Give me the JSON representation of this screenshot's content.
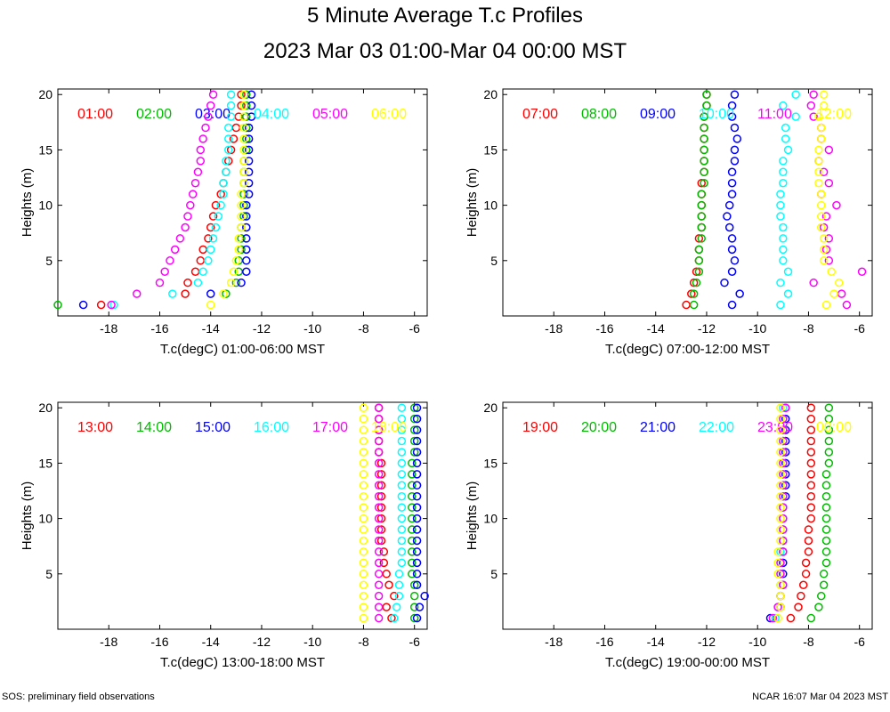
{
  "title": "5 Minute Average T.c Profiles",
  "subtitle": "2023 Mar 03 01:00-Mar 04 00:00 MST",
  "footer_left": "SOS: preliminary field observations",
  "footer_right": "NCAR 16:07 Mar 04 2023 MST",
  "hour_colors": [
    "#ff0000",
    "#00bb00",
    "#0000ff",
    "#00ffff",
    "#ff00ff",
    "#ffff00"
  ],
  "chart_data": [
    {
      "type": "scatter",
      "xlabel": "T.c(degC) 01:00-06:00 MST",
      "ylabel": "Heights (m)",
      "xlim": [
        -20,
        -5.5
      ],
      "ylim": [
        0,
        20.5
      ],
      "xticks": [
        -18,
        -16,
        -14,
        -12,
        -10,
        -8,
        -6
      ],
      "yticks": [
        5,
        10,
        15,
        20
      ],
      "heights": [
        1,
        2,
        3,
        4,
        5,
        6,
        7,
        8,
        9,
        10,
        11,
        12,
        13,
        14,
        15,
        16,
        17,
        18,
        19,
        20
      ],
      "series": [
        {
          "name": "01:00",
          "values": [
            -18.3,
            -15.0,
            -14.9,
            -14.6,
            -14.4,
            -14.3,
            -14.1,
            -14.0,
            -13.9,
            -13.8,
            -13.6,
            -13.5,
            -13.4,
            -13.3,
            -13.2,
            -13.1,
            -13.0,
            -12.9,
            -12.8,
            -12.8
          ]
        },
        {
          "name": "02:00",
          "values": [
            -20.0,
            -13.4,
            -13.0,
            -12.9,
            -12.9,
            -12.8,
            -12.8,
            -12.8,
            -12.7,
            -12.7,
            -12.7,
            -12.7,
            -12.7,
            -12.7,
            -12.6,
            -12.6,
            -12.6,
            -12.6,
            -12.6,
            -12.6
          ]
        },
        {
          "name": "03:00",
          "values": [
            -19.0,
            -14.0,
            -12.8,
            -12.6,
            -12.6,
            -12.6,
            -12.6,
            -12.6,
            -12.6,
            -12.6,
            -12.5,
            -12.5,
            -12.5,
            -12.5,
            -12.5,
            -12.5,
            -12.5,
            -12.4,
            -12.4,
            -12.4
          ]
        },
        {
          "name": "04:00",
          "values": [
            -17.8,
            -15.5,
            -14.5,
            -14.3,
            -14.1,
            -14.0,
            -13.9,
            -13.8,
            -13.7,
            -13.6,
            -13.5,
            -13.5,
            -13.4,
            -13.4,
            -13.3,
            -13.3,
            -13.3,
            -13.2,
            -13.2,
            -13.2
          ]
        },
        {
          "name": "05:00",
          "values": [
            -17.9,
            -16.9,
            -16.0,
            -15.8,
            -15.6,
            -15.4,
            -15.2,
            -15.0,
            -14.9,
            -14.8,
            -14.7,
            -14.6,
            -14.5,
            -14.4,
            -14.4,
            -14.3,
            -14.2,
            -14.1,
            -14.0,
            -13.9
          ]
        },
        {
          "name": "06:00",
          "values": [
            -14.0,
            -13.5,
            -13.2,
            -13.1,
            -13.0,
            -12.9,
            -12.9,
            -12.8,
            -12.8,
            -12.8,
            -12.8,
            -12.7,
            -12.7,
            -12.7,
            -12.7,
            -12.7,
            -12.7,
            -12.7,
            -12.7,
            -12.7
          ]
        }
      ]
    },
    {
      "type": "scatter",
      "xlabel": "T.c(degC) 07:00-12:00 MST",
      "ylabel": "Heights (m)",
      "xlim": [
        -20,
        -5.5
      ],
      "ylim": [
        0,
        20.5
      ],
      "xticks": [
        -18,
        -16,
        -14,
        -12,
        -10,
        -8,
        -6
      ],
      "yticks": [
        5,
        10,
        15,
        20
      ],
      "heights": [
        1,
        2,
        3,
        4,
        5,
        6,
        7,
        8,
        9,
        10,
        11,
        12,
        13,
        14,
        15,
        16,
        17,
        18,
        19,
        20
      ],
      "series": [
        {
          "name": "07:00",
          "values": [
            -12.8,
            -12.6,
            -12.5,
            -12.4,
            -12.3,
            -12.3,
            -12.3,
            -12.2,
            -12.2,
            -12.2,
            -12.2,
            -12.2,
            -12.1,
            -12.1,
            -12.1,
            -12.1,
            -12.1,
            -12.1,
            -12.0,
            -12.0
          ]
        },
        {
          "name": "08:00",
          "values": [
            -12.5,
            -12.5,
            -12.4,
            -12.3,
            -12.3,
            -12.3,
            -12.2,
            -12.2,
            -12.2,
            -12.2,
            -12.2,
            -12.1,
            -12.1,
            -12.1,
            -12.1,
            -12.1,
            -12.1,
            -12.1,
            -12.0,
            -12.0
          ]
        },
        {
          "name": "09:00",
          "values": [
            -11.0,
            -10.7,
            -11.3,
            -11.0,
            -10.9,
            -11.0,
            -11.0,
            -11.1,
            -11.2,
            -11.1,
            -11.0,
            -11.0,
            -11.0,
            -10.9,
            -10.9,
            -10.8,
            -10.9,
            -11.0,
            -11.0,
            -10.9
          ]
        },
        {
          "name": "10:00",
          "values": [
            -9.1,
            -8.8,
            -9.1,
            -8.8,
            -9.0,
            -9.0,
            -9.0,
            -9.0,
            -9.1,
            -9.1,
            -9.1,
            -9.0,
            -9.0,
            -9.0,
            -8.8,
            -8.9,
            -8.9,
            -8.5,
            -9.0,
            -8.5
          ]
        },
        {
          "name": "11:00",
          "values": [
            -6.5,
            -6.7,
            -7.8,
            -5.9,
            -7.2,
            -7.3,
            -7.2,
            -7.4,
            -7.3,
            -6.9,
            -7.5,
            -7.2,
            -7.4,
            -7.6,
            -7.2,
            -7.5,
            -7.5,
            -7.8,
            -7.9,
            -7.8
          ]
        },
        {
          "name": "12:00",
          "values": [
            -7.3,
            -7.0,
            -6.8,
            -7.1,
            -7.4,
            -7.4,
            -7.4,
            -7.5,
            -7.5,
            -7.5,
            -7.5,
            -7.6,
            -7.6,
            -7.6,
            -7.6,
            -7.5,
            -7.5,
            -7.6,
            -7.4,
            -7.4
          ]
        }
      ]
    },
    {
      "type": "scatter",
      "xlabel": "T.c(degC) 13:00-18:00 MST",
      "ylabel": "Heights (m)",
      "xlim": [
        -20,
        -5.5
      ],
      "ylim": [
        0,
        20.5
      ],
      "xticks": [
        -18,
        -16,
        -14,
        -12,
        -10,
        -8,
        -6
      ],
      "yticks": [
        5,
        10,
        15,
        20
      ],
      "heights": [
        1,
        2,
        3,
        4,
        5,
        6,
        7,
        8,
        9,
        10,
        11,
        12,
        13,
        14,
        15,
        16,
        17,
        18,
        19,
        20
      ],
      "series": [
        {
          "name": "13:00",
          "values": [
            -6.9,
            -7.1,
            -6.8,
            -7.0,
            -7.1,
            -7.2,
            -7.2,
            -7.3,
            -7.3,
            -7.3,
            -7.3,
            -7.3,
            -7.3,
            -7.3,
            -7.3,
            -7.4,
            -7.4,
            -7.4,
            -7.4,
            -7.4
          ]
        },
        {
          "name": "14:00",
          "values": [
            -6.0,
            -6.0,
            -6.0,
            -6.0,
            -6.1,
            -6.1,
            -6.1,
            -6.1,
            -6.1,
            -6.1,
            -6.1,
            -6.1,
            -6.1,
            -6.1,
            -6.1,
            -6.0,
            -6.0,
            -6.0,
            -6.0,
            -6.0
          ]
        },
        {
          "name": "15:00",
          "values": [
            -5.9,
            -5.8,
            -5.6,
            -5.9,
            -5.9,
            -5.9,
            -5.9,
            -5.9,
            -5.9,
            -5.9,
            -5.9,
            -5.9,
            -5.9,
            -5.9,
            -5.9,
            -5.9,
            -5.9,
            -5.9,
            -5.9,
            -5.9
          ]
        },
        {
          "name": "16:00",
          "values": [
            -6.8,
            -6.7,
            -6.6,
            -6.6,
            -6.6,
            -6.5,
            -6.5,
            -6.5,
            -6.5,
            -6.5,
            -6.5,
            -6.5,
            -6.5,
            -6.5,
            -6.5,
            -6.5,
            -6.5,
            -6.5,
            -6.5,
            -6.5
          ]
        },
        {
          "name": "17:00",
          "values": [
            -7.4,
            -7.4,
            -7.4,
            -7.4,
            -7.4,
            -7.4,
            -7.4,
            -7.4,
            -7.4,
            -7.4,
            -7.4,
            -7.4,
            -7.4,
            -7.4,
            -7.4,
            -7.4,
            -7.4,
            -7.4,
            -7.4,
            -7.4
          ]
        },
        {
          "name": "18:00",
          "values": [
            -8.0,
            -8.0,
            -8.0,
            -8.0,
            -8.0,
            -8.0,
            -8.0,
            -8.0,
            -8.0,
            -8.0,
            -8.0,
            -8.0,
            -8.0,
            -8.0,
            -8.0,
            -8.0,
            -8.0,
            -8.0,
            -8.0,
            -8.0
          ]
        }
      ]
    },
    {
      "type": "scatter",
      "xlabel": "T.c(degC) 19:00-00:00 MST",
      "ylabel": "Heights (m)",
      "xlim": [
        -20,
        -5.5
      ],
      "ylim": [
        0,
        20.5
      ],
      "xticks": [
        -18,
        -16,
        -14,
        -12,
        -10,
        -8,
        -6
      ],
      "yticks": [
        5,
        10,
        15,
        20
      ],
      "heights": [
        1,
        2,
        3,
        4,
        5,
        6,
        7,
        8,
        9,
        10,
        11,
        12,
        13,
        14,
        15,
        16,
        17,
        18,
        19,
        20
      ],
      "series": [
        {
          "name": "19:00",
          "values": [
            -8.7,
            -8.4,
            -8.3,
            -8.2,
            -8.1,
            -8.1,
            -8.0,
            -8.0,
            -8.0,
            -7.9,
            -7.9,
            -7.9,
            -7.9,
            -7.9,
            -7.9,
            -7.9,
            -7.9,
            -7.9,
            -7.9,
            -7.9
          ]
        },
        {
          "name": "20:00",
          "values": [
            -7.9,
            -7.6,
            -7.5,
            -7.4,
            -7.4,
            -7.3,
            -7.3,
            -7.3,
            -7.3,
            -7.3,
            -7.3,
            -7.3,
            -7.3,
            -7.3,
            -7.2,
            -7.2,
            -7.2,
            -7.2,
            -7.2,
            -7.2
          ]
        },
        {
          "name": "21:00",
          "values": [
            -9.5,
            -9.1,
            -9.1,
            -9.0,
            -9.0,
            -9.0,
            -9.0,
            -9.0,
            -9.0,
            -9.0,
            -9.0,
            -8.9,
            -8.9,
            -8.9,
            -8.9,
            -8.9,
            -8.9,
            -8.9,
            -8.9,
            -8.9
          ]
        },
        {
          "name": "22:00",
          "values": [
            -9.3,
            -9.2,
            -9.1,
            -9.1,
            -9.1,
            -9.1,
            -9.1,
            -9.0,
            -9.0,
            -9.0,
            -9.0,
            -9.0,
            -9.0,
            -9.0,
            -9.0,
            -9.0,
            -9.0,
            -9.0,
            -9.0,
            -9.0
          ]
        },
        {
          "name": "23:00",
          "values": [
            -9.4,
            -9.2,
            -9.1,
            -9.0,
            -9.1,
            -9.1,
            -9.0,
            -9.0,
            -9.0,
            -9.0,
            -9.0,
            -9.0,
            -9.0,
            -9.0,
            -9.0,
            -9.0,
            -9.0,
            -9.0,
            -9.0,
            -8.9
          ]
        },
        {
          "name": "00:00",
          "values": [
            -9.2,
            -9.1,
            -9.1,
            -9.1,
            -9.2,
            -9.2,
            -9.2,
            -9.1,
            -9.1,
            -9.1,
            -9.1,
            -9.1,
            -9.1,
            -9.1,
            -9.1,
            -9.1,
            -9.1,
            -9.1,
            -9.1,
            -9.1
          ]
        }
      ]
    }
  ]
}
